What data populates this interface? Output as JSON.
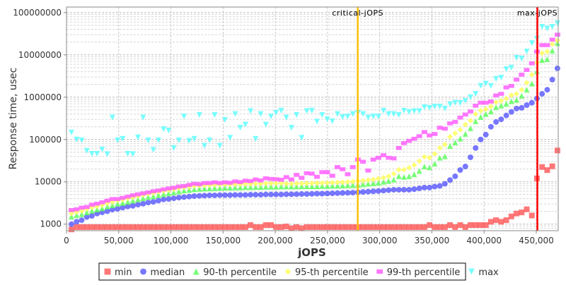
{
  "chart_data": {
    "type": "scatter",
    "title": "",
    "xlabel": "jOPS",
    "ylabel": "Response time, usec",
    "xlim": [
      0,
      471000
    ],
    "ylim": [
      700,
      135000000
    ],
    "yscale": "log",
    "grid": true,
    "legend_position": "bottom",
    "x_ticks": [
      0,
      50000,
      100000,
      150000,
      200000,
      250000,
      300000,
      350000,
      400000,
      450000
    ],
    "x_tick_labels": [
      "0",
      "50,000",
      "100,000",
      "150,000",
      "200,000",
      "250,000",
      "300,000",
      "350,000",
      "400,000",
      "450,000"
    ],
    "y_ticks": [
      1000,
      10000,
      100000,
      1000000,
      10000000,
      100000000
    ],
    "y_tick_labels": [
      "1000",
      "10000",
      "100000",
      "1000000",
      "10000000",
      "100000000"
    ],
    "x_start": 4750,
    "x_step": 4900,
    "markers": [
      {
        "label": "critical-jOPS",
        "x": 279000,
        "color": "#ffc000"
      },
      {
        "label": "max-jOPS",
        "x": 451000,
        "color": "#ff0000"
      }
    ],
    "series": [
      {
        "name": "min",
        "shape": "square",
        "color": "#ff5555",
        "values": [
          750,
          850,
          850,
          850,
          850,
          850,
          850,
          850,
          850,
          850,
          850,
          850,
          850,
          850,
          850,
          850,
          850,
          850,
          850,
          850,
          850,
          850,
          850,
          850,
          850,
          850,
          850,
          850,
          850,
          850,
          850,
          850,
          850,
          850,
          850,
          950,
          850,
          850,
          950,
          950,
          850,
          850,
          880,
          800,
          850,
          800,
          850,
          850,
          850,
          850,
          850,
          850,
          850,
          850,
          850,
          850,
          850,
          850,
          850,
          850,
          850,
          850,
          850,
          850,
          850,
          850,
          850,
          850,
          850,
          850,
          950,
          850,
          850,
          850,
          950,
          850,
          950,
          850,
          950,
          950,
          950,
          950,
          1135,
          1240,
          1135,
          1240,
          1520,
          1780,
          1890,
          2240,
          1600,
          12100,
          22400,
          18900,
          23300,
          55000
        ]
      },
      {
        "name": "median",
        "shape": "circle",
        "color": "#5555ff",
        "values": [
          1000,
          1140,
          1240,
          1470,
          1565,
          1780,
          1900,
          2020,
          2200,
          2290,
          2450,
          2610,
          2710,
          2890,
          3040,
          3240,
          3370,
          3590,
          3830,
          3930,
          4080,
          4240,
          4360,
          4480,
          4590,
          4660,
          4710,
          4780,
          4780,
          4840,
          4840,
          4840,
          4890,
          4890,
          4890,
          4950,
          4950,
          4950,
          5020,
          5020,
          5020,
          5020,
          5080,
          5080,
          5100,
          5150,
          5150,
          5200,
          5250,
          5250,
          5300,
          5350,
          5400,
          5450,
          5500,
          5550,
          5650,
          5750,
          5850,
          5950,
          6050,
          6200,
          6350,
          6500,
          6500,
          6500,
          6500,
          6700,
          7000,
          7300,
          7300,
          7700,
          8000,
          9000,
          11000,
          13500,
          19000,
          23000,
          38000,
          63000,
          100000,
          130000,
          200000,
          260000,
          300000,
          370000,
          450000,
          540000,
          560000,
          650000,
          740000,
          930000,
          1200000,
          1500000,
          2600000,
          4800000
        ]
      },
      {
        "name": "90-th percentile",
        "shape": "triangle-up",
        "color": "#55ff55",
        "values": [
          1500,
          1620,
          1710,
          1890,
          2070,
          2210,
          2350,
          2610,
          2780,
          3040,
          3160,
          3370,
          3590,
          3830,
          4080,
          4360,
          4530,
          4840,
          5070,
          5330,
          5620,
          5920,
          6220,
          6390,
          6630,
          6810,
          6890,
          6980,
          7070,
          7160,
          7250,
          7250,
          7360,
          7360,
          7440,
          7440,
          7540,
          7540,
          7640,
          7640,
          7640,
          7740,
          7740,
          7740,
          7740,
          7840,
          7840,
          7840,
          7840,
          7940,
          7940,
          8050,
          8050,
          8160,
          8270,
          8380,
          8500,
          8740,
          9000,
          9250,
          9500,
          10000,
          10500,
          11200,
          13500,
          13000,
          13500,
          15000,
          18000,
          23000,
          22000,
          27000,
          37000,
          40000,
          70000,
          85000,
          105000,
          135000,
          185000,
          270000,
          340000,
          400000,
          460000,
          580000,
          630000,
          700000,
          800000,
          860000,
          1080000,
          1500000,
          2100000,
          4100000,
          7500000,
          7900000,
          12600000,
          19000000
        ]
      },
      {
        "name": "95-th percentile",
        "shape": "diamond",
        "color": "#ffff55",
        "values": [
          1800,
          1940,
          2050,
          2270,
          2480,
          2650,
          2820,
          3130,
          3340,
          3650,
          3790,
          4040,
          4310,
          4600,
          4900,
          5230,
          5440,
          5810,
          6080,
          6400,
          6740,
          7100,
          7460,
          7670,
          7960,
          8170,
          8270,
          8380,
          8480,
          8590,
          8700,
          8700,
          8830,
          8830,
          8930,
          8930,
          9050,
          9050,
          9170,
          9170,
          9170,
          9290,
          9000,
          9000,
          9100,
          9100,
          9200,
          9300,
          9400,
          9400,
          9500,
          9600,
          9700,
          9800,
          10000,
          10200,
          10400,
          10700,
          11000,
          11400,
          11800,
          12500,
          13500,
          15500,
          19400,
          19400,
          21500,
          25000,
          31000,
          39000,
          37000,
          46000,
          63000,
          76000,
          116000,
          140000,
          170000,
          225000,
          280000,
          400000,
          480000,
          520000,
          600000,
          760000,
          820000,
          930000,
          1120000,
          1200000,
          1500000,
          2200000,
          3400000,
          6600000,
          11000000,
          12000000,
          18000000,
          22000000
        ]
      },
      {
        "name": "99-th percentile",
        "shape": "rect",
        "color": "#ff55ff",
        "values": [
          2150,
          2240,
          2450,
          2540,
          2880,
          3040,
          3280,
          3590,
          3920,
          3920,
          4180,
          4460,
          4820,
          5070,
          5330,
          5620,
          5990,
          6220,
          6630,
          6980,
          7250,
          7740,
          7940,
          8450,
          9000,
          8770,
          9360,
          9360,
          9730,
          9360,
          9730,
          9500,
          10230,
          9850,
          10630,
          10400,
          11350,
          10800,
          12110,
          11700,
          11500,
          11200,
          12900,
          11400,
          14600,
          12400,
          16000,
          15600,
          13100,
          16900,
          16900,
          13900,
          22300,
          19800,
          15100,
          22300,
          33600,
          29800,
          18500,
          33600,
          37000,
          42600,
          37000,
          35700,
          63000,
          82000,
          93000,
          104000,
          120000,
          150000,
          125000,
          135000,
          190000,
          180000,
          240000,
          260000,
          330000,
          390000,
          460000,
          630000,
          740000,
          740000,
          790000,
          1100000,
          1200000,
          1700000,
          1850000,
          2600000,
          3400000,
          4400000,
          6300000,
          12000000,
          17000000,
          17000000,
          23000000,
          30000000
        ]
      },
      {
        "name": "max",
        "shape": "triangle-down",
        "color": "#55ffff",
        "values": [
          147000,
          100000,
          96000,
          54000,
          46000,
          46000,
          58000,
          45000,
          330000,
          96000,
          104000,
          46000,
          45000,
          112000,
          330000,
          96000,
          57000,
          96000,
          175000,
          163000,
          63000,
          96000,
          350000,
          93000,
          104000,
          380000,
          71000,
          96000,
          380000,
          71000,
          290000,
          110000,
          400000,
          190000,
          225000,
          470000,
          104000,
          400000,
          225000,
          350000,
          430000,
          480000,
          330000,
          190000,
          380000,
          110000,
          470000,
          480000,
          265000,
          380000,
          300000,
          270000,
          400000,
          340000,
          350000,
          400000,
          430000,
          400000,
          330000,
          350000,
          350000,
          480000,
          400000,
          400000,
          380000,
          480000,
          450000,
          470000,
          470000,
          580000,
          560000,
          600000,
          600000,
          540000,
          680000,
          740000,
          730000,
          820000,
          1000000,
          1200000,
          1850000,
          2100000,
          1850000,
          2700000,
          2900000,
          4600000,
          5000000,
          8500000,
          8200000,
          12000000,
          19000000,
          24000000,
          46000000,
          42000000,
          46000000,
          56000000
        ]
      }
    ]
  }
}
